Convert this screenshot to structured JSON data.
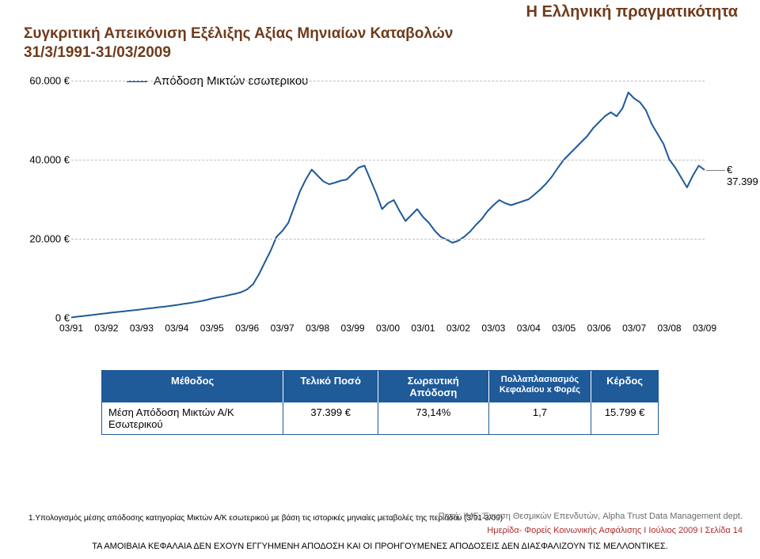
{
  "header_right": "Η Ελληνική πραγματικότητα",
  "title": {
    "line1": "Συγκριτική Απεικόνιση Εξέλιξης Αξίας Μηνιαίων Καταβολών",
    "line2": "31/3/1991-31/03/2009"
  },
  "legend": {
    "label": "Απόδοση Μικτών εσωτερικου",
    "color": "#1f5a99"
  },
  "chart": {
    "type": "line",
    "series_color": "#1f5a99",
    "line_width": 2,
    "background_color": "#ffffff",
    "grid_color": "#bfbfbf",
    "grid_style": "dashed",
    "ylim": [
      0,
      60000
    ],
    "ytick_values": [
      0,
      20000,
      40000,
      60000
    ],
    "ytick_labels": [
      "0 €",
      "20.000 €",
      "40.000 €",
      "60.000 €"
    ],
    "x_categories": [
      "03/91",
      "03/92",
      "03/93",
      "03/94",
      "03/95",
      "03/96",
      "03/97",
      "03/98",
      "03/99",
      "03/00",
      "03/01",
      "03/02",
      "03/03",
      "03/04",
      "03/05",
      "03/06",
      "03/07",
      "03/08",
      "03/09"
    ],
    "x_fontsize": 12,
    "y_fontsize": 13,
    "callout": {
      "label": "€ 37.399",
      "value": 37399,
      "fontsize": 13
    },
    "series": [
      100,
      300,
      450,
      620,
      800,
      1000,
      1150,
      1350,
      1500,
      1650,
      1820,
      1980,
      2150,
      2350,
      2500,
      2700,
      2850,
      3050,
      3250,
      3500,
      3700,
      3950,
      4200,
      4500,
      4900,
      5200,
      5450,
      5800,
      6100,
      6500,
      7200,
      8500,
      11000,
      14000,
      17000,
      20500,
      22000,
      24000,
      28000,
      32000,
      35000,
      37500,
      36000,
      34500,
      33800,
      34200,
      34700,
      35000,
      36500,
      38000,
      38500,
      35000,
      31500,
      27500,
      29000,
      29800,
      27000,
      24500,
      26000,
      27500,
      25500,
      24000,
      22000,
      20500,
      19800,
      19000,
      19500,
      20500,
      21800,
      23500,
      25000,
      27000,
      28500,
      29800,
      29000,
      28500,
      29000,
      29500,
      30000,
      31200,
      32500,
      34000,
      35800,
      38000,
      40000,
      41500,
      43000,
      44500,
      46000,
      48000,
      49500,
      51000,
      52000,
      51000,
      53000,
      57000,
      55500,
      54500,
      52500,
      49000,
      46500,
      44000,
      40000,
      38000,
      35500,
      33000,
      36000,
      38500,
      37399
    ]
  },
  "table": {
    "border_color": "#1f5a99",
    "header_bg": "#1f5a99",
    "header_color": "#ffffff",
    "columns": [
      "Μέθοδος",
      "Τελικό Ποσό",
      "Σωρευτική Απόδοση",
      "Πολλαπλασιασμός Κεφαλαίου x Φορές",
      "Κέρδος"
    ],
    "rows": [
      [
        "Μέση Απόδοση Μικτών Α/Κ Εσωτερικού",
        "37.399 €",
        "73,14%",
        "1,7",
        "15.799 €"
      ]
    ]
  },
  "footnote": "1.Υπολογισμός μέσης απόδοσης κατηγορίας Μικτών Α/Κ εσωτερικού με βάση τις ιστορικές μηνιαίες μεταβολές της περιόδου (3/91-3/09)",
  "source": "Πηγή: IMF,  Ένωση Θεσμικών Επενδυτών, Alpha Trust Data Management dept.",
  "meta": "Ημερίδα- Φορείς Κοινωνικής Ασφάλισης  Ι  Ιούλιος 2009  Ι  Σελίδα  14",
  "disclaimer": "ΤΑ ΑΜΟΙΒΑΙΑ ΚΕΦΑΛΑΙΑ ΔΕΝ ΕΧΟΥΝ ΕΓΓΥΗΜΕΝΗ ΑΠΟΔΟΣΗ ΚΑΙ ΟΙ ΠΡΟΗΓΟΥΜΕΝΕΣ ΑΠΟΔΟΣΕΙΣ ΔΕΝ ΔΙΑΣΦΑΛΙΖΟΥΝ ΤΙΣ ΜΕΛΛΟΝΤΙΚΕΣ."
}
